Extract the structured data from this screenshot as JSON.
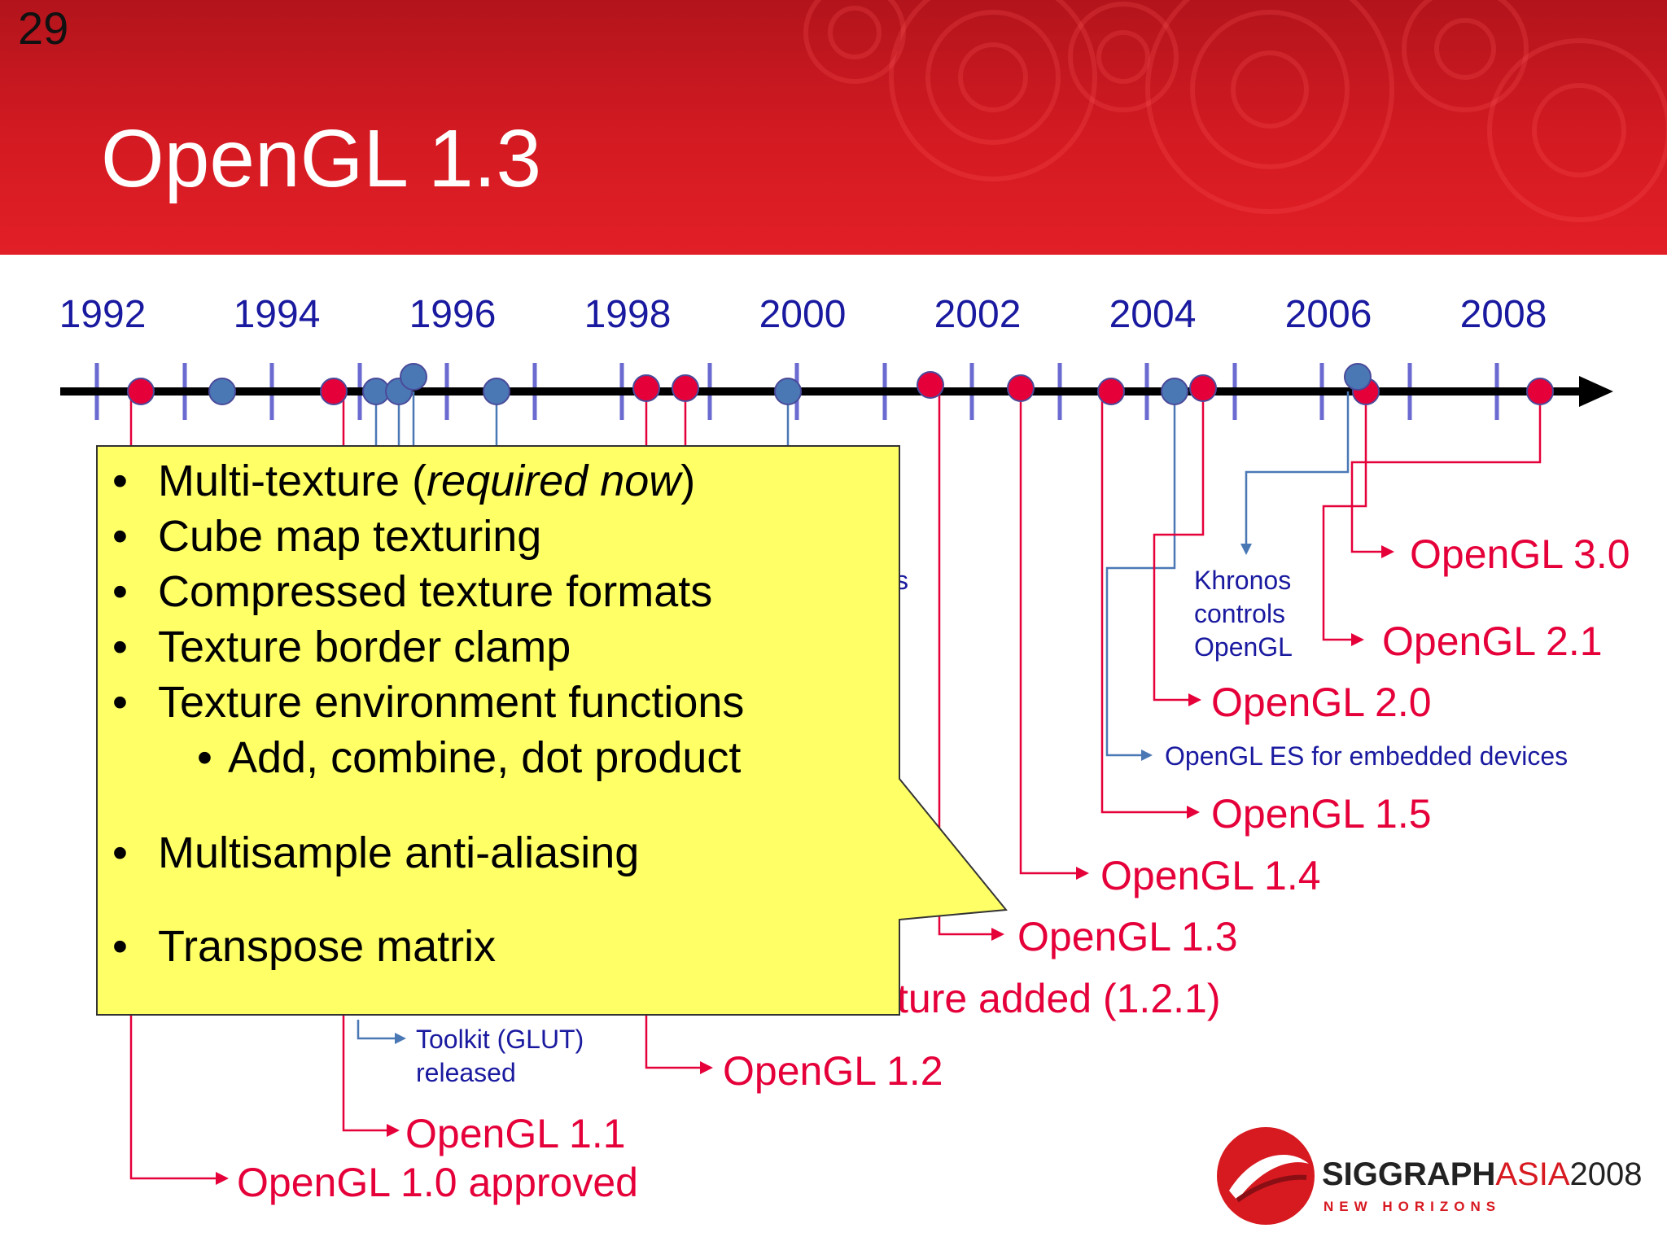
{
  "slide_number": "29",
  "title": "OpenGL 1.3",
  "timeline": {
    "years": [
      "1992",
      "1994",
      "1996",
      "1998",
      "2000",
      "2002",
      "2004",
      "2006",
      "2008"
    ]
  },
  "events": {
    "gl10": "OpenGL 1.0 approved",
    "gl11": "OpenGL 1.1",
    "glut_partial": "Toolkit (GLUT)",
    "glut_released": "released",
    "gl12": "OpenGL 1.2",
    "gl121_partial": "ture added (1.2.1)",
    "gl13": "OpenGL 1.3",
    "gl14": "OpenGL 1.4",
    "gl15": "OpenGL 1.5",
    "gles": "OpenGL ES for embedded devices",
    "gl20": "OpenGL 2.0",
    "gl21": "OpenGL 2.1",
    "gl30": "OpenGL 3.0",
    "khronos_1": "Khronos",
    "khronos_2": "controls",
    "khronos_3": "OpenGL",
    "hidden_fragment": "s"
  },
  "callout": {
    "items": [
      {
        "bullet": "•",
        "text": "Multi-texture (",
        "italic": "required now",
        "tail": ")"
      },
      {
        "bullet": "•",
        "text": "Cube map texturing"
      },
      {
        "bullet": "•",
        "text": "Compressed texture formats"
      },
      {
        "bullet": "•",
        "text": "Texture border clamp"
      },
      {
        "bullet": "•",
        "text": "Texture environment functions"
      },
      {
        "bullet": "•",
        "text": "Add, combine, dot product"
      },
      {
        "bullet": "•",
        "text": "Multisample anti-aliasing"
      },
      {
        "bullet": "•",
        "text": "Transpose matrix"
      }
    ]
  },
  "logo": {
    "main": "SIGGRAPH",
    "asia": "ASIA",
    "year": "2008",
    "tagline": "NEW HORIZONS"
  },
  "colors": {
    "header_red": "#d41a22",
    "release_red": "#e5003a",
    "event_blue": "#4a78b5",
    "text_blue": "#1a1aa0",
    "tick_purple": "#6a6ad0",
    "callout_yellow": "#ffff66"
  }
}
